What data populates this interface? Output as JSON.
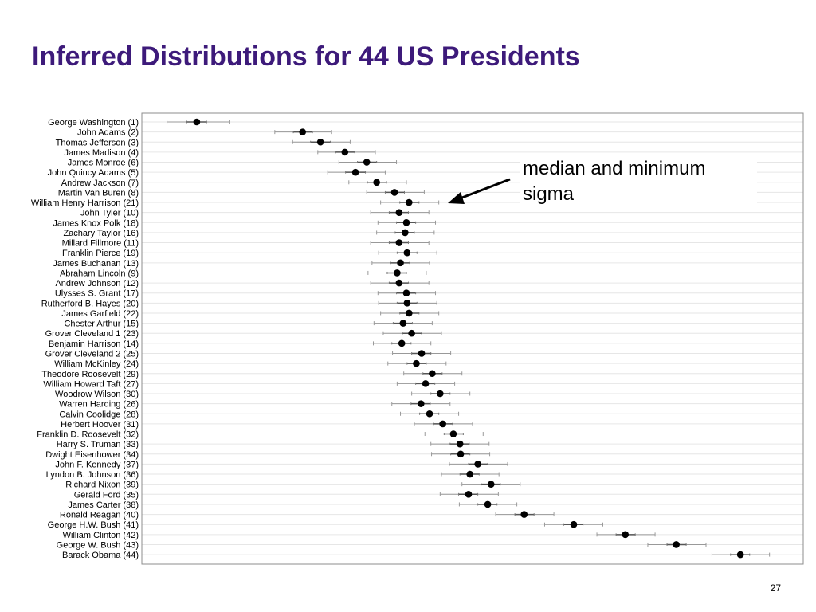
{
  "slide": {
    "title": "Inferred Distributions for 44 US Presidents",
    "annotation": "median and minimum sigma",
    "page_number": "27"
  },
  "colors": {
    "title": "#3d1a7a",
    "point": "#000000",
    "whisker": "#999999",
    "gridline": "#e6e6e6",
    "frame": "#8c8c8c"
  },
  "chart_data": {
    "type": "scatter",
    "title": "",
    "xlabel": "",
    "ylabel": "",
    "x_range": [
      0,
      100
    ],
    "grid": "horizontal",
    "legend": "none",
    "note": "no x-axis tick labels shown; median and interval values are relative position estimates on a 0-100 scale",
    "series": [
      {
        "name": "",
        "points": [
          {
            "label": "George Washington (1)",
            "median": 8.3,
            "low": 3.8,
            "high": 13.3,
            "inner_low": 6.8,
            "inner_high": 9.8
          },
          {
            "label": "John Adams (2)",
            "median": 24.3,
            "low": 20.1,
            "high": 28.7,
            "inner_low": 22.9,
            "inner_high": 25.8
          },
          {
            "label": "Thomas Jefferson (3)",
            "median": 27.0,
            "low": 22.8,
            "high": 31.5,
            "inner_low": 25.5,
            "inner_high": 28.5
          },
          {
            "label": "James Madison (4)",
            "median": 30.7,
            "low": 26.6,
            "high": 35.3,
            "inner_low": 29.3,
            "inner_high": 32.2
          },
          {
            "label": "James Monroe (6)",
            "median": 34.0,
            "low": 29.8,
            "high": 38.5,
            "inner_low": 32.6,
            "inner_high": 35.5
          },
          {
            "label": "John Quincy Adams (5)",
            "median": 32.3,
            "low": 28.1,
            "high": 36.8,
            "inner_low": 30.8,
            "inner_high": 33.8
          },
          {
            "label": "Andrew Jackson (7)",
            "median": 35.5,
            "low": 31.3,
            "high": 40.0,
            "inner_low": 34.1,
            "inner_high": 37.0
          },
          {
            "label": "Martin Van Buren (8)",
            "median": 38.2,
            "low": 34.0,
            "high": 42.7,
            "inner_low": 36.8,
            "inner_high": 39.7
          },
          {
            "label": "William Henry Harrison (21)",
            "median": 40.4,
            "low": 36.1,
            "high": 44.9,
            "inner_low": 39.0,
            "inner_high": 41.9
          },
          {
            "label": "John Tyler (10)",
            "median": 38.9,
            "low": 34.6,
            "high": 43.4,
            "inner_low": 37.4,
            "inner_high": 40.3
          },
          {
            "label": "James Knox Polk (18)",
            "median": 40.0,
            "low": 35.7,
            "high": 44.4,
            "inner_low": 38.5,
            "inner_high": 41.4
          },
          {
            "label": "Zachary Taylor (16)",
            "median": 39.8,
            "low": 35.5,
            "high": 44.2,
            "inner_low": 38.3,
            "inner_high": 41.2
          },
          {
            "label": "Millard Fillmore (11)",
            "median": 38.9,
            "low": 34.6,
            "high": 43.4,
            "inner_low": 37.4,
            "inner_high": 40.3
          },
          {
            "label": "Franklin Pierce (19)",
            "median": 40.1,
            "low": 35.8,
            "high": 44.6,
            "inner_low": 38.6,
            "inner_high": 41.6
          },
          {
            "label": "James Buchanan (13)",
            "median": 39.1,
            "low": 34.8,
            "high": 43.5,
            "inner_low": 37.6,
            "inner_high": 40.5
          },
          {
            "label": "Abraham Lincoln (9)",
            "median": 38.6,
            "low": 34.2,
            "high": 43.0,
            "inner_low": 37.1,
            "inner_high": 40.0
          },
          {
            "label": "Andrew Johnson (12)",
            "median": 38.9,
            "low": 34.6,
            "high": 43.4,
            "inner_low": 37.4,
            "inner_high": 40.3
          },
          {
            "label": "Ulysses S. Grant (17)",
            "median": 40.0,
            "low": 35.7,
            "high": 44.4,
            "inner_low": 38.5,
            "inner_high": 41.4
          },
          {
            "label": "Rutherford B. Hayes (20)",
            "median": 40.1,
            "low": 35.8,
            "high": 44.6,
            "inner_low": 38.6,
            "inner_high": 41.6
          },
          {
            "label": "James Garfield (22)",
            "median": 40.4,
            "low": 36.1,
            "high": 44.9,
            "inner_low": 39.0,
            "inner_high": 41.9
          },
          {
            "label": "Chester Arthur (15)",
            "median": 39.5,
            "low": 35.1,
            "high": 43.9,
            "inner_low": 38.0,
            "inner_high": 40.9
          },
          {
            "label": "Grover Cleveland 1 (23)",
            "median": 40.8,
            "low": 36.5,
            "high": 45.3,
            "inner_low": 39.4,
            "inner_high": 42.3
          },
          {
            "label": "Benjamin Harrison (14)",
            "median": 39.3,
            "low": 35.0,
            "high": 43.7,
            "inner_low": 37.8,
            "inner_high": 40.7
          },
          {
            "label": "Grover Cleveland 2 (25)",
            "median": 42.3,
            "low": 37.9,
            "high": 46.7,
            "inner_low": 40.8,
            "inner_high": 43.7
          },
          {
            "label": "William McKinley (24)",
            "median": 41.5,
            "low": 37.2,
            "high": 46.0,
            "inner_low": 40.1,
            "inner_high": 43.0
          },
          {
            "label": "Theodore Roosevelt (29)",
            "median": 43.9,
            "low": 39.6,
            "high": 48.4,
            "inner_low": 42.5,
            "inner_high": 45.4
          },
          {
            "label": "William Howard Taft (27)",
            "median": 42.9,
            "low": 38.6,
            "high": 47.3,
            "inner_low": 41.4,
            "inner_high": 44.3
          },
          {
            "label": "Woodrow Wilson (30)",
            "median": 45.1,
            "low": 40.8,
            "high": 49.6,
            "inner_low": 43.7,
            "inner_high": 46.6
          },
          {
            "label": "Warren Harding (26)",
            "median": 42.2,
            "low": 37.8,
            "high": 46.6,
            "inner_low": 40.7,
            "inner_high": 43.6
          },
          {
            "label": "Calvin Coolidge (28)",
            "median": 43.5,
            "low": 39.1,
            "high": 47.9,
            "inner_low": 42.0,
            "inner_high": 44.9
          },
          {
            "label": "Herbert Hoover (31)",
            "median": 45.5,
            "low": 41.2,
            "high": 50.0,
            "inner_low": 44.1,
            "inner_high": 47.0
          },
          {
            "label": "Franklin D. Roosevelt (32)",
            "median": 47.1,
            "low": 42.8,
            "high": 51.6,
            "inner_low": 45.7,
            "inner_high": 48.6
          },
          {
            "label": "Harry S. Truman (33)",
            "median": 48.1,
            "low": 43.7,
            "high": 52.5,
            "inner_low": 46.6,
            "inner_high": 49.5
          },
          {
            "label": "Dwight Eisenhower (34)",
            "median": 48.2,
            "low": 43.8,
            "high": 52.6,
            "inner_low": 46.7,
            "inner_high": 49.6
          },
          {
            "label": "John F. Kennedy (37)",
            "median": 50.8,
            "low": 46.5,
            "high": 55.3,
            "inner_low": 49.4,
            "inner_high": 52.3
          },
          {
            "label": "Lyndon B. Johnson (36)",
            "median": 49.6,
            "low": 45.3,
            "high": 54.0,
            "inner_low": 48.1,
            "inner_high": 51.0
          },
          {
            "label": "Richard Nixon (39)",
            "median": 52.8,
            "low": 48.4,
            "high": 57.2,
            "inner_low": 51.3,
            "inner_high": 54.2
          },
          {
            "label": "Gerald Ford (35)",
            "median": 49.4,
            "low": 45.1,
            "high": 53.9,
            "inner_low": 47.9,
            "inner_high": 50.8
          },
          {
            "label": "James Carter (38)",
            "median": 52.3,
            "low": 48.0,
            "high": 56.7,
            "inner_low": 50.8,
            "inner_high": 53.7
          },
          {
            "label": "Ronald Reagan (40)",
            "median": 57.8,
            "low": 53.5,
            "high": 62.3,
            "inner_low": 56.4,
            "inner_high": 59.3
          },
          {
            "label": "George H.W. Bush (41)",
            "median": 65.3,
            "low": 60.9,
            "high": 69.7,
            "inner_low": 63.8,
            "inner_high": 66.7
          },
          {
            "label": "William Clinton (42)",
            "median": 73.1,
            "low": 68.8,
            "high": 77.6,
            "inner_low": 71.7,
            "inner_high": 74.6
          },
          {
            "label": "George W. Bush (43)",
            "median": 80.8,
            "low": 76.5,
            "high": 85.3,
            "inner_low": 79.4,
            "inner_high": 82.3
          },
          {
            "label": "Barack Obama (44)",
            "median": 90.5,
            "low": 86.2,
            "high": 94.9,
            "inner_low": 89.0,
            "inner_high": 91.9
          }
        ]
      }
    ]
  }
}
